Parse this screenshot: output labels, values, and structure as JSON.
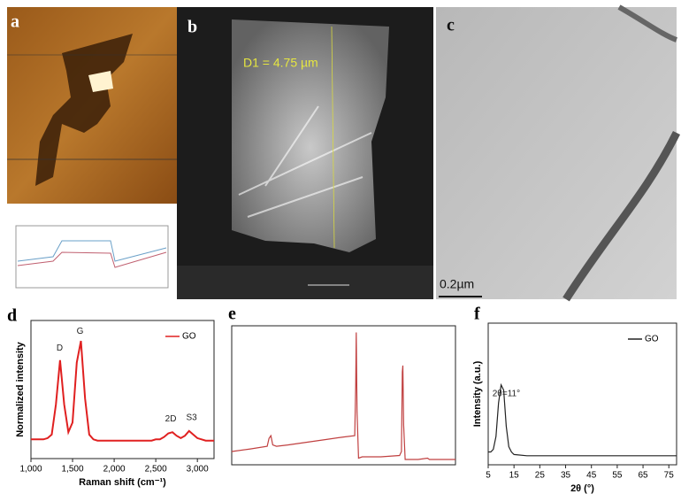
{
  "panels": [
    {
      "label": "a"
    },
    {
      "label": "b",
      "annotation": "D1 = 4.75 µm"
    },
    {
      "label": "c",
      "scale_bar": "0.2µm"
    }
  ],
  "chart_data": [
    {
      "type": "line",
      "panel": "d",
      "xlabel": "Raman shift (cm⁻¹)",
      "ylabel": "Normalized intensity",
      "xlim": [
        1000,
        3200
      ],
      "ylim": [
        0,
        1.15
      ],
      "xticks": [
        {
          "value": 1000,
          "label": "1,000"
        },
        {
          "value": 1500,
          "label": "1,500"
        },
        {
          "value": 2000,
          "label": "2,000"
        },
        {
          "value": 2500,
          "label": "2,500"
        },
        {
          "value": 3000,
          "label": "3,000"
        }
      ],
      "annotations": [
        "D",
        "G",
        "2D",
        "S3"
      ],
      "legend": "upper right",
      "x": [
        1000,
        1050,
        1100,
        1150,
        1200,
        1250,
        1300,
        1350,
        1400,
        1450,
        1500,
        1550,
        1600,
        1650,
        1700,
        1750,
        1800,
        1850,
        1900,
        1950,
        2000,
        2050,
        2100,
        2150,
        2200,
        2250,
        2300,
        2350,
        2400,
        2450,
        2500,
        2550,
        2600,
        2650,
        2700,
        2750,
        2800,
        2850,
        2900,
        2950,
        3000,
        3050,
        3100,
        3150,
        3200
      ],
      "series": [
        {
          "name": "GO",
          "color": "#e02020",
          "values": [
            0.16,
            0.16,
            0.16,
            0.16,
            0.17,
            0.2,
            0.45,
            0.82,
            0.45,
            0.22,
            0.3,
            0.8,
            0.98,
            0.5,
            0.2,
            0.16,
            0.15,
            0.15,
            0.15,
            0.15,
            0.15,
            0.15,
            0.15,
            0.15,
            0.15,
            0.15,
            0.15,
            0.15,
            0.15,
            0.15,
            0.16,
            0.16,
            0.18,
            0.21,
            0.22,
            0.19,
            0.17,
            0.19,
            0.23,
            0.2,
            0.17,
            0.16,
            0.15,
            0.15,
            0.15
          ]
        }
      ]
    },
    {
      "type": "line",
      "panel": "e",
      "xlim": [
        1200,
        0
      ],
      "ylim": [
        0,
        1.05
      ],
      "x": [
        1200,
        1100,
        1010,
        1000,
        990,
        980,
        960,
        900,
        800,
        700,
        600,
        540,
        535,
        532,
        528,
        520,
        500,
        400,
        300,
        290,
        285,
        282,
        278,
        270,
        200,
        150,
        140,
        100,
        50,
        0
      ],
      "series": [
        {
          "name": null,
          "color": "#c04040",
          "values": [
            0.1,
            0.12,
            0.14,
            0.2,
            0.22,
            0.15,
            0.14,
            0.15,
            0.17,
            0.19,
            0.21,
            0.22,
            0.6,
            1.0,
            0.4,
            0.05,
            0.06,
            0.06,
            0.07,
            0.1,
            0.7,
            0.75,
            0.3,
            0.04,
            0.04,
            0.05,
            0.04,
            0.04,
            0.04,
            0.04
          ]
        }
      ]
    },
    {
      "type": "line",
      "panel": "f",
      "xlabel": "2θ (°)",
      "ylabel": "Intensity (a.u.)",
      "xlim": [
        5,
        78
      ],
      "ylim": [
        0,
        1.1
      ],
      "xticks": [
        5,
        15,
        25,
        35,
        45,
        55,
        65,
        75
      ],
      "annotations": [
        "2θ=11°"
      ],
      "legend": "upper right",
      "x": [
        5,
        6,
        7,
        8,
        9,
        10,
        11,
        12,
        13,
        14,
        15,
        20,
        25,
        30,
        35,
        40,
        45,
        50,
        55,
        60,
        65,
        70,
        75,
        78
      ],
      "series": [
        {
          "name": "GO",
          "color": "#222222",
          "values": [
            0.1,
            0.1,
            0.12,
            0.22,
            0.48,
            0.62,
            0.58,
            0.3,
            0.14,
            0.1,
            0.08,
            0.07,
            0.07,
            0.07,
            0.07,
            0.07,
            0.07,
            0.07,
            0.07,
            0.07,
            0.07,
            0.07,
            0.07,
            0.07
          ]
        }
      ]
    }
  ]
}
